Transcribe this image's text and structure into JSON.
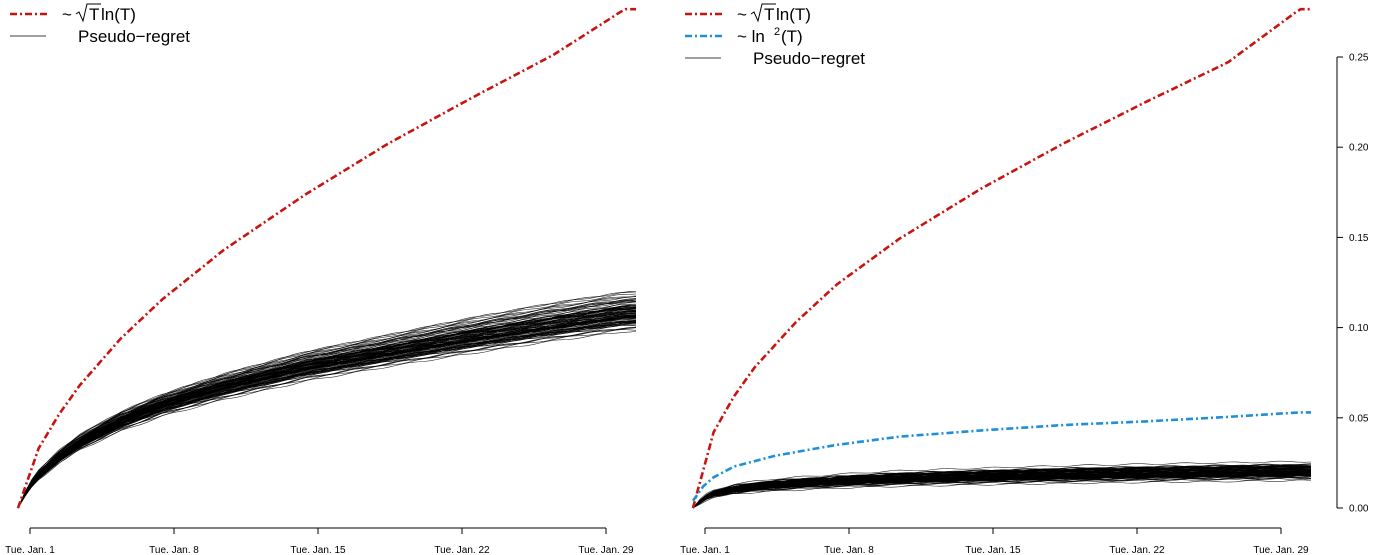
{
  "colors": {
    "upper_bound": "#c8140f",
    "log_bound": "#1f8fdc",
    "pseudo_regret": "#000000",
    "axis": "#000000"
  },
  "chart_data": [
    {
      "type": "line",
      "title": "",
      "xlabel": "",
      "ylabel": "",
      "x_ticks": [
        "Tue. Jan. 1",
        "Tue. Jan. 8",
        "Tue. Jan. 15",
        "Tue. Jan. 22",
        "Tue. Jan. 29"
      ],
      "x_range_days": [
        -0.5,
        29.5
      ],
      "y_axis_shown": false,
      "ylim": [
        0,
        0.25
      ],
      "grid": false,
      "legend_position": "top-left",
      "legend": [
        {
          "label_prefix": "~ ",
          "label_radicand": "T",
          "label_suffix": " ln(T)",
          "style": "dash-dot",
          "color_key": "upper_bound"
        },
        {
          "label": "Pseudo−regret",
          "style": "solid",
          "color_key": "pseudo_regret"
        }
      ],
      "series": [
        {
          "style": "dash-dot",
          "color_key": "upper_bound",
          "x": [
            0,
            1,
            2,
            3,
            5,
            7,
            10,
            14,
            18,
            22,
            26,
            29.5
          ],
          "y": [
            0,
            0.033,
            0.052,
            0.068,
            0.094,
            0.1155,
            0.143,
            0.174,
            0.202,
            0.227,
            0.251,
            0.2765
          ]
        }
      ],
      "pseudo_regret_band": {
        "count": 100,
        "color_key": "pseudo_regret",
        "x": [
          0,
          0.5,
          1,
          2,
          3,
          5,
          7,
          10,
          14,
          18,
          22,
          26,
          29.5
        ],
        "mean": [
          0,
          0.011,
          0.018,
          0.028,
          0.036,
          0.048,
          0.057,
          0.067,
          0.078,
          0.086,
          0.094,
          0.101,
          0.107
        ],
        "low": [
          0,
          0.009,
          0.015,
          0.024,
          0.031,
          0.041,
          0.049,
          0.058,
          0.068,
          0.076,
          0.083,
          0.09,
          0.095
        ],
        "high": [
          0,
          0.014,
          0.022,
          0.034,
          0.043,
          0.056,
          0.066,
          0.078,
          0.091,
          0.101,
          0.111,
          0.12,
          0.126
        ]
      }
    },
    {
      "type": "line",
      "title": "",
      "xlabel": "",
      "ylabel": "",
      "x_ticks": [
        "Tue. Jan. 1",
        "Tue. Jan. 8",
        "Tue. Jan. 15",
        "Tue. Jan. 22",
        "Tue. Jan. 29"
      ],
      "x_range_days": [
        -0.5,
        29.5
      ],
      "y_axis_position": "right",
      "y_ticks": [
        "0.00",
        "0.05",
        "0.10",
        "0.15",
        "0.20",
        "0.25"
      ],
      "ylim": [
        0,
        0.25
      ],
      "grid": false,
      "legend_position": "top-left",
      "legend": [
        {
          "label_prefix": "~ ",
          "label_radicand": "T",
          "label_suffix": " ln(T)",
          "style": "dash-dot",
          "color_key": "upper_bound"
        },
        {
          "label_prefix": "~ ln",
          "label_superscript": "2",
          "label_suffix": "(T)",
          "style": "dash-dot",
          "color_key": "log_bound"
        },
        {
          "label": "Pseudo−regret",
          "style": "solid",
          "color_key": "pseudo_regret"
        }
      ],
      "series": [
        {
          "style": "dash-dot",
          "color_key": "upper_bound",
          "x": [
            0,
            1,
            2,
            3,
            5,
            7,
            10,
            14,
            18,
            22,
            26,
            29.5
          ],
          "y": [
            0,
            0.042,
            0.062,
            0.078,
            0.103,
            0.124,
            0.149,
            0.177,
            0.202,
            0.225,
            0.247,
            0.2765
          ]
        },
        {
          "style": "dash-dot",
          "color_key": "log_bound",
          "x": [
            0,
            0.5,
            1,
            2,
            4,
            7,
            10,
            14,
            18,
            22,
            26,
            29.5
          ],
          "y": [
            0.004,
            0.012,
            0.017,
            0.023,
            0.029,
            0.035,
            0.0395,
            0.043,
            0.046,
            0.048,
            0.0505,
            0.053
          ]
        }
      ],
      "pseudo_regret_band": {
        "count": 100,
        "color_key": "pseudo_regret",
        "x": [
          0,
          0.5,
          1,
          2,
          4,
          7,
          10,
          14,
          18,
          22,
          26,
          29.5
        ],
        "mean": [
          0,
          0.005,
          0.008,
          0.0105,
          0.013,
          0.015,
          0.0165,
          0.0178,
          0.0187,
          0.0194,
          0.02,
          0.0205
        ],
        "low": [
          0,
          0.0035,
          0.0055,
          0.0075,
          0.009,
          0.0105,
          0.0115,
          0.0123,
          0.013,
          0.0136,
          0.0141,
          0.0145
        ],
        "high": [
          0,
          0.007,
          0.01,
          0.0135,
          0.0165,
          0.019,
          0.021,
          0.0225,
          0.0238,
          0.0248,
          0.0256,
          0.0262
        ]
      }
    }
  ]
}
